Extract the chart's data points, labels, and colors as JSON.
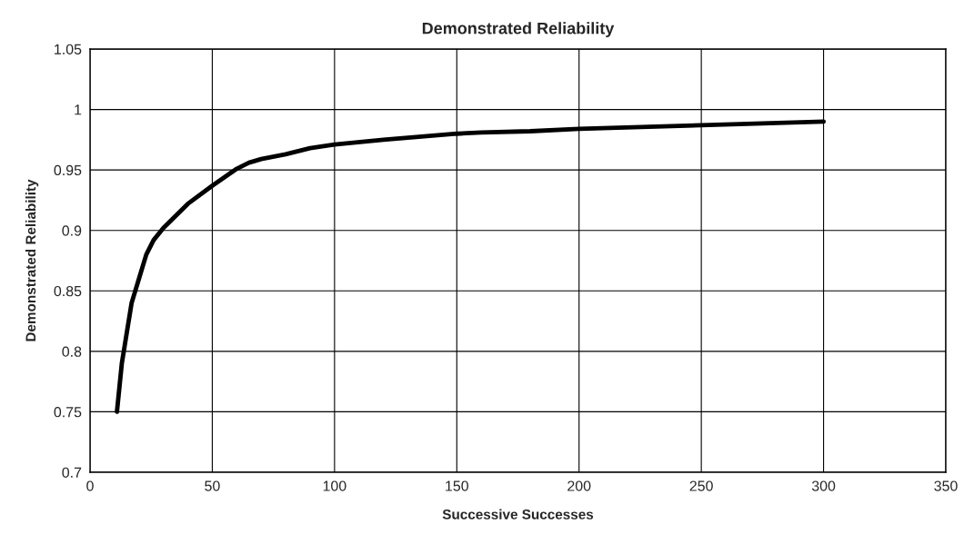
{
  "chart_data": {
    "type": "line",
    "title": "Demonstrated Reliability",
    "xlabel": "Successive Successes",
    "ylabel": "Demonstrated Reliability",
    "x": [
      11,
      13,
      15,
      17,
      20,
      23,
      26,
      30,
      40,
      50,
      60,
      65,
      70,
      80,
      90,
      100,
      120,
      150,
      160,
      180,
      200,
      250,
      300
    ],
    "series": [
      {
        "color": "#000000",
        "values": [
          0.75,
          0.79,
          0.815,
          0.84,
          0.86,
          0.88,
          0.892,
          0.902,
          0.922,
          0.937,
          0.951,
          0.956,
          0.959,
          0.963,
          0.968,
          0.971,
          0.975,
          0.98,
          0.981,
          0.982,
          0.984,
          0.987,
          0.99
        ]
      }
    ],
    "xlim": [
      0,
      350
    ],
    "xticks": [
      0,
      50,
      100,
      150,
      200,
      250,
      300,
      350
    ],
    "ylim": [
      0.7,
      1.05
    ],
    "yticks": [
      0.7,
      0.75,
      0.8,
      0.85,
      0.9,
      0.95,
      1,
      1.05
    ],
    "grid": true,
    "marker": "none",
    "line_style": "solid",
    "legend": false
  }
}
